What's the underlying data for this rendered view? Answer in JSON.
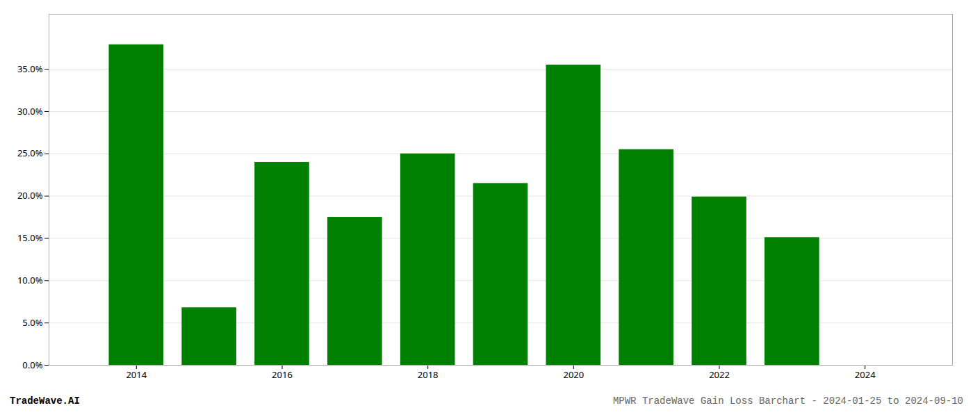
{
  "chart_data": {
    "type": "bar",
    "x": [
      2014,
      2015,
      2016,
      2017,
      2018,
      2019,
      2020,
      2021,
      2022,
      2023
    ],
    "values": [
      0.379,
      0.068,
      0.24,
      0.175,
      0.25,
      0.215,
      0.355,
      0.255,
      0.199,
      0.151
    ],
    "color": "#008000",
    "xlim": [
      2012.8,
      2025.2
    ],
    "xticks": [
      2014,
      2016,
      2018,
      2020,
      2022,
      2024
    ],
    "ylim": [
      0.0,
      0.415
    ],
    "yticks": [
      {
        "value": 0.0,
        "label": "0.0%"
      },
      {
        "value": 0.05,
        "label": "5.0%"
      },
      {
        "value": 0.1,
        "label": "10.0%"
      },
      {
        "value": 0.15,
        "label": "15.0%"
      },
      {
        "value": 0.2,
        "label": "20.0%"
      },
      {
        "value": 0.25,
        "label": "25.0%"
      },
      {
        "value": 0.3,
        "label": "30.0%"
      },
      {
        "value": 0.35,
        "label": "35.0%"
      }
    ],
    "grid": true,
    "annotations": [
      "TradeWave.AI",
      "MPWR TradeWave Gain Loss Barchart - 2024-01-25 to 2024-09-10"
    ]
  }
}
